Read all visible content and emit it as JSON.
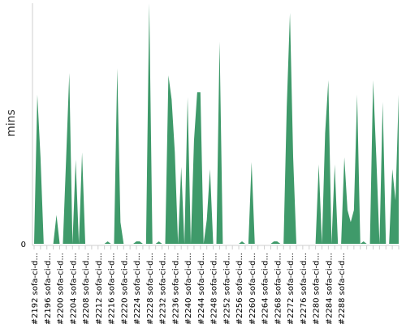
{
  "chart_data": {
    "type": "area",
    "title": "",
    "xlabel": "",
    "ylabel": "mins",
    "y_tick_labels": [
      "0"
    ],
    "grid": false,
    "legend": "none",
    "color": "#3f9a6a",
    "series": [
      {
        "values": [
          0,
          0.62,
          0.36,
          0,
          0,
          0,
          0,
          0.12,
          0,
          0,
          0.35,
          0.71,
          0,
          0.35,
          0,
          0.38,
          0,
          0,
          0,
          0,
          0,
          0,
          0,
          0.01,
          0,
          0,
          0.73,
          0.09,
          0,
          0,
          0,
          0,
          0.01,
          0.01,
          0,
          0,
          1.0,
          0,
          0,
          0.01,
          0,
          0,
          0.7,
          0.6,
          0.38,
          0,
          0.32,
          0,
          0.61,
          0,
          0.43,
          0.63,
          0.63,
          0,
          0.1,
          0.31,
          0,
          0,
          0.84,
          0,
          0,
          0,
          0,
          0,
          0,
          0.01,
          0,
          0,
          0.34,
          0,
          0,
          0,
          0,
          0,
          0,
          0.01,
          0.01,
          0,
          0,
          0.57,
          0.96,
          0.36,
          0,
          0,
          0,
          0,
          0,
          0,
          0,
          0.33,
          0,
          0.46,
          0.68,
          0,
          0.33,
          0,
          0,
          0.36,
          0.14,
          0.09,
          0.14,
          0.62,
          0,
          0.01,
          0,
          0,
          0.68,
          0.36,
          0,
          0.59,
          0,
          0,
          0.31,
          0.18,
          0.62
        ]
      }
    ],
    "x_tick_labels": [
      "#2192 sofa-ci-d...",
      "#2196 sofa-ci-d...",
      "#2200 sofa-ci-d...",
      "#2204 sofa-ci-d...",
      "#2208 sofa-ci-d...",
      "#2212 sofa-ci-d...",
      "#2216 sofa-ci-d...",
      "#2220 sofa-ci-d...",
      "#2224 sofa-ci-d...",
      "#2228 sofa-ci-d...",
      "#2232 sofa-ci-d...",
      "#2236 sofa-ci-d...",
      "#2240 sofa-ci-d...",
      "#2244 sofa-ci-d...",
      "#2248 sofa-ci-d...",
      "#2252 sofa-ci-d...",
      "#2256 sofa-ci-d...",
      "#2260 sofa-ci-d...",
      "#2264 sofa-ci-d...",
      "#2268 sofa-ci-d...",
      "#2272 sofa-ci-d...",
      "#2276 sofa-ci-d...",
      "#2280 sofa-ci-d...",
      "#2284 sofa-ci-d...",
      "#2288 sofa-ci-d..."
    ]
  }
}
